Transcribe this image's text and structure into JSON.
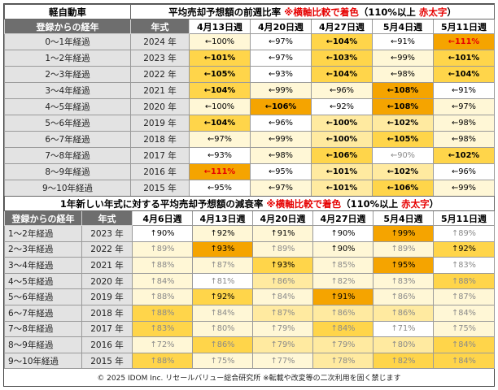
{
  "table1": {
    "category": "軽自動車",
    "title_main": "平均売却予想額の前週比率",
    "title_note": "※横軸比較で着色",
    "title_rule": "（110%以上",
    "title_rule_red": "赤太字",
    "title_rule_close": "）",
    "col_age": "登録からの経年",
    "col_year": "年式",
    "weeks": [
      "4月13日週",
      "4月20日週",
      "4月27日週",
      "5月4日週",
      "5月11日週"
    ],
    "rows": [
      {
        "age": "0～1年経過",
        "year": "2024 年",
        "cells": [
          {
            "t": "←100%",
            "c": 1
          },
          {
            "t": "←97%",
            "c": 0
          },
          {
            "t": "←104%",
            "c": 3,
            "b": true
          },
          {
            "t": "←91%",
            "c": 0
          },
          {
            "t": "←111%",
            "c": 4,
            "red": true
          }
        ]
      },
      {
        "age": "1～2年経過",
        "year": "2023 年",
        "cells": [
          {
            "t": "←101%",
            "c": 3,
            "b": true
          },
          {
            "t": "←97%",
            "c": 0
          },
          {
            "t": "←103%",
            "c": 3,
            "b": true
          },
          {
            "t": "←99%",
            "c": 1
          },
          {
            "t": "←101%",
            "c": 3,
            "b": true
          }
        ]
      },
      {
        "age": "2～3年経過",
        "year": "2022 年",
        "cells": [
          {
            "t": "←105%",
            "c": 3,
            "b": true
          },
          {
            "t": "←93%",
            "c": 0
          },
          {
            "t": "←104%",
            "c": 3,
            "b": true
          },
          {
            "t": "←98%",
            "c": 1
          },
          {
            "t": "←104%",
            "c": 3,
            "b": true
          }
        ]
      },
      {
        "age": "3～4年経過",
        "year": "2021 年",
        "cells": [
          {
            "t": "←104%",
            "c": 3,
            "b": true
          },
          {
            "t": "←99%",
            "c": 1
          },
          {
            "t": "←96%",
            "c": 1
          },
          {
            "t": "←108%",
            "c": 4,
            "b": true
          },
          {
            "t": "←91%",
            "c": 0
          }
        ]
      },
      {
        "age": "4～5年経過",
        "year": "2020 年",
        "cells": [
          {
            "t": "←100%",
            "c": 1
          },
          {
            "t": "←106%",
            "c": 4,
            "b": true
          },
          {
            "t": "←92%",
            "c": 0
          },
          {
            "t": "←108%",
            "c": 4,
            "b": true
          },
          {
            "t": "←97%",
            "c": 1
          }
        ]
      },
      {
        "age": "5～6年経過",
        "year": "2019 年",
        "cells": [
          {
            "t": "←104%",
            "c": 3,
            "b": true
          },
          {
            "t": "←96%",
            "c": 0
          },
          {
            "t": "←100%",
            "c": 2,
            "b": true
          },
          {
            "t": "←102%",
            "c": 2,
            "b": true
          },
          {
            "t": "←98%",
            "c": 1
          }
        ]
      },
      {
        "age": "6～7年経過",
        "year": "2018 年",
        "cells": [
          {
            "t": "←97%",
            "c": 1
          },
          {
            "t": "←99%",
            "c": 1
          },
          {
            "t": "←100%",
            "c": 2,
            "b": true
          },
          {
            "t": "←105%",
            "c": 3,
            "b": true
          },
          {
            "t": "←98%",
            "c": 1
          }
        ]
      },
      {
        "age": "7～8年経過",
        "year": "2017 年",
        "cells": [
          {
            "t": "←93%",
            "c": 0
          },
          {
            "t": "←98%",
            "c": 1
          },
          {
            "t": "←106%",
            "c": 3,
            "b": true
          },
          {
            "t": "←90%",
            "c": 0,
            "gray": true
          },
          {
            "t": "←102%",
            "c": 3,
            "b": true
          }
        ]
      },
      {
        "age": "8～9年経過",
        "year": "2016 年",
        "cells": [
          {
            "t": "←111%",
            "c": 4,
            "red": true
          },
          {
            "t": "←95%",
            "c": 0
          },
          {
            "t": "←101%",
            "c": 2,
            "b": true
          },
          {
            "t": "←102%",
            "c": 2,
            "b": true
          },
          {
            "t": "←96%",
            "c": 0
          }
        ]
      },
      {
        "age": "9～10年経過",
        "year": "2015 年",
        "cells": [
          {
            "t": "←95%",
            "c": 0
          },
          {
            "t": "←97%",
            "c": 1
          },
          {
            "t": "←101%",
            "c": 2,
            "b": true
          },
          {
            "t": "←106%",
            "c": 3,
            "b": true
          },
          {
            "t": "←99%",
            "c": 1
          }
        ]
      }
    ]
  },
  "table2": {
    "title_main": "1年新しい年式に対する平均売却予想額の減衰率",
    "title_note": "※横軸比較で着色",
    "title_rule": "（110%以上",
    "title_rule_red": "赤太字",
    "title_rule_close": "）",
    "col_age": "登録からの経年",
    "col_year": "年式",
    "weeks": [
      "4月6日週",
      "4月13日週",
      "4月20日週",
      "4月27日週",
      "5月4日週",
      "5月11日週"
    ],
    "rows": [
      {
        "age": "1～2年経過",
        "year": "2023 年",
        "cells": [
          {
            "t": "↑90%",
            "c": 0
          },
          {
            "t": "↑92%",
            "c": 1
          },
          {
            "t": "↑91%",
            "c": 1
          },
          {
            "t": "↑90%",
            "c": 0
          },
          {
            "t": "↑99%",
            "c": 4
          },
          {
            "t": "↑89%",
            "c": 0,
            "gray": true
          }
        ]
      },
      {
        "age": "2～3年経過",
        "year": "2022 年",
        "cells": [
          {
            "t": "↑89%",
            "c": 1,
            "gray": true
          },
          {
            "t": "↑93%",
            "c": 4
          },
          {
            "t": "↑89%",
            "c": 1,
            "gray": true
          },
          {
            "t": "↑90%",
            "c": 1
          },
          {
            "t": "↑89%",
            "c": 1,
            "gray": true
          },
          {
            "t": "↑92%",
            "c": 3
          }
        ]
      },
      {
        "age": "3～4年経過",
        "year": "2021 年",
        "cells": [
          {
            "t": "↑88%",
            "c": 1,
            "gray": true
          },
          {
            "t": "↑87%",
            "c": 1,
            "gray": true
          },
          {
            "t": "↑93%",
            "c": 3
          },
          {
            "t": "↑85%",
            "c": 1,
            "gray": true
          },
          {
            "t": "↑95%",
            "c": 4
          },
          {
            "t": "↑83%",
            "c": 0,
            "gray": true
          }
        ]
      },
      {
        "age": "4～5年経過",
        "year": "2020 年",
        "cells": [
          {
            "t": "↑84%",
            "c": 1,
            "gray": true
          },
          {
            "t": "↑81%",
            "c": 0,
            "gray": true
          },
          {
            "t": "↑86%",
            "c": 2,
            "gray": true
          },
          {
            "t": "↑82%",
            "c": 1,
            "gray": true
          },
          {
            "t": "↑83%",
            "c": 1,
            "gray": true
          },
          {
            "t": "↑88%",
            "c": 3,
            "gray": true
          }
        ]
      },
      {
        "age": "5～6年経過",
        "year": "2019 年",
        "cells": [
          {
            "t": "↑88%",
            "c": 1,
            "gray": true
          },
          {
            "t": "↑92%",
            "c": 3
          },
          {
            "t": "↑84%",
            "c": 1,
            "gray": true
          },
          {
            "t": "↑91%",
            "c": 4
          },
          {
            "t": "↑86%",
            "c": 1,
            "gray": true
          },
          {
            "t": "↑87%",
            "c": 1,
            "gray": true
          }
        ]
      },
      {
        "age": "6～7年経過",
        "year": "2018 年",
        "cells": [
          {
            "t": "↑88%",
            "c": 3,
            "gray": true
          },
          {
            "t": "↑84%",
            "c": 1,
            "gray": true
          },
          {
            "t": "↑87%",
            "c": 2,
            "gray": true
          },
          {
            "t": "↑86%",
            "c": 2,
            "gray": true
          },
          {
            "t": "↑86%",
            "c": 2,
            "gray": true
          },
          {
            "t": "↑84%",
            "c": 1,
            "gray": true
          }
        ]
      },
      {
        "age": "7～8年経過",
        "year": "2017 年",
        "cells": [
          {
            "t": "↑83%",
            "c": 3,
            "gray": true
          },
          {
            "t": "↑80%",
            "c": 1,
            "gray": true
          },
          {
            "t": "↑79%",
            "c": 1,
            "gray": true
          },
          {
            "t": "↑84%",
            "c": 3,
            "gray": true
          },
          {
            "t": "↑71%",
            "c": 0,
            "gray": true
          },
          {
            "t": "↑75%",
            "c": 1,
            "gray": true
          }
        ]
      },
      {
        "age": "8～9年経過",
        "year": "2016 年",
        "cells": [
          {
            "t": "↑72%",
            "c": 1,
            "gray": true
          },
          {
            "t": "↑86%",
            "c": 3,
            "gray": true
          },
          {
            "t": "↑79%",
            "c": 2,
            "gray": true
          },
          {
            "t": "↑79%",
            "c": 2,
            "gray": true
          },
          {
            "t": "↑80%",
            "c": 2,
            "gray": true
          },
          {
            "t": "↑84%",
            "c": 3,
            "gray": true
          }
        ]
      },
      {
        "age": "9～10年経過",
        "year": "2015 年",
        "cells": [
          {
            "t": "↑88%",
            "c": 3,
            "gray": true
          },
          {
            "t": "↑75%",
            "c": 1,
            "gray": true
          },
          {
            "t": "↑77%",
            "c": 1,
            "gray": true
          },
          {
            "t": "↑78%",
            "c": 2,
            "gray": true
          },
          {
            "t": "↑82%",
            "c": 3,
            "gray": true
          },
          {
            "t": "↑84%",
            "c": 3,
            "gray": true
          }
        ]
      }
    ]
  },
  "footer": "© 2025 IDOM Inc. リセールバリュー総合研究所 ※転載や改変等の二次利用を固く禁じます",
  "colors": {
    "accent_red": "#e60000",
    "heat_low": "#fff7d6",
    "heat_mid": "#ffd54a",
    "heat_high": "#f5a400",
    "header_gray": "#6e6e6e"
  }
}
